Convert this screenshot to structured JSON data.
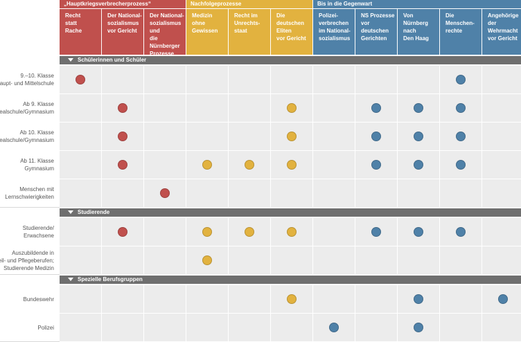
{
  "colors": {
    "red": "#c0504d",
    "yellow": "#e2b23f",
    "blue": "#4f81a8",
    "section": "#6f6f6f",
    "cell": "#ececec"
  },
  "groups": [
    {
      "label": "„Hauptkriegsverbrecherprozess“",
      "color": "red",
      "span": 3
    },
    {
      "label": "Nachfolgeprozesse",
      "color": "yellow",
      "span": 3
    },
    {
      "label": "Bis in die Gegenwart",
      "color": "blue",
      "span": 5
    }
  ],
  "columns": [
    {
      "lines": [
        "Recht",
        "statt",
        "Rache"
      ],
      "color": "red"
    },
    {
      "lines": [
        "Der National-",
        "sozialismus",
        "vor Gericht"
      ],
      "color": "red"
    },
    {
      "lines": [
        "Der National-",
        "sozialismus und",
        "die Nürnberger",
        "Prozesse"
      ],
      "color": "red"
    },
    {
      "lines": [
        "Medizin",
        "ohne",
        "Gewissen"
      ],
      "color": "yellow"
    },
    {
      "lines": [
        "Recht im",
        "Unrechts-",
        "staat"
      ],
      "color": "yellow"
    },
    {
      "lines": [
        "Die deutschen",
        "Eliten",
        "vor Gericht"
      ],
      "color": "yellow"
    },
    {
      "lines": [
        "Polizei-",
        "verbrechen",
        "im National-",
        "sozialismus"
      ],
      "color": "blue"
    },
    {
      "lines": [
        "NS Prozesse",
        "vor deutschen",
        "Gerichten"
      ],
      "color": "blue"
    },
    {
      "lines": [
        "Von Nürnberg",
        "nach",
        "Den Haag"
      ],
      "color": "blue"
    },
    {
      "lines": [
        "Die",
        "Menschen-",
        "rechte"
      ],
      "color": "blue"
    },
    {
      "lines": [
        "Angehörige",
        "der Wehrmacht",
        "vor Gericht"
      ],
      "color": "blue"
    }
  ],
  "sections": [
    {
      "title": "Schülerinnen und Schüler",
      "rows": [
        {
          "lines": [
            "9.–10. Klasse",
            "Haupt- und Mittelschule"
          ],
          "dots": [
            0,
            9
          ]
        },
        {
          "lines": [
            "Ab 9. Klasse",
            "Realschule/Gymnasium"
          ],
          "dots": [
            1,
            5,
            7,
            8,
            9
          ]
        },
        {
          "lines": [
            "Ab 10. Klasse",
            "Realschule/Gymnasium"
          ],
          "dots": [
            1,
            5,
            7,
            8,
            9
          ]
        },
        {
          "lines": [
            "Ab 11. Klasse",
            "Gymnasium"
          ],
          "dots": [
            1,
            3,
            4,
            5,
            7,
            8,
            9
          ]
        },
        {
          "lines": [
            "Menschen mit",
            "Lernschwierigkeiten"
          ],
          "dots": [
            2
          ]
        }
      ]
    },
    {
      "title": "Studierende",
      "rows": [
        {
          "lines": [
            "Studierende/",
            "Erwachsene"
          ],
          "dots": [
            1,
            3,
            4,
            5,
            7,
            8,
            9
          ]
        },
        {
          "lines": [
            "Auszubildende in",
            "Heil- und Pflegeberufen;",
            "Studierende Medizin"
          ],
          "dots": [
            3
          ]
        }
      ]
    },
    {
      "title": "Spezielle Berufsgruppen",
      "rows": [
        {
          "lines": [
            "Bundeswehr"
          ],
          "dots": [
            5,
            8,
            10
          ]
        },
        {
          "lines": [
            "Polizei"
          ],
          "dots": [
            6,
            8
          ]
        }
      ]
    }
  ]
}
